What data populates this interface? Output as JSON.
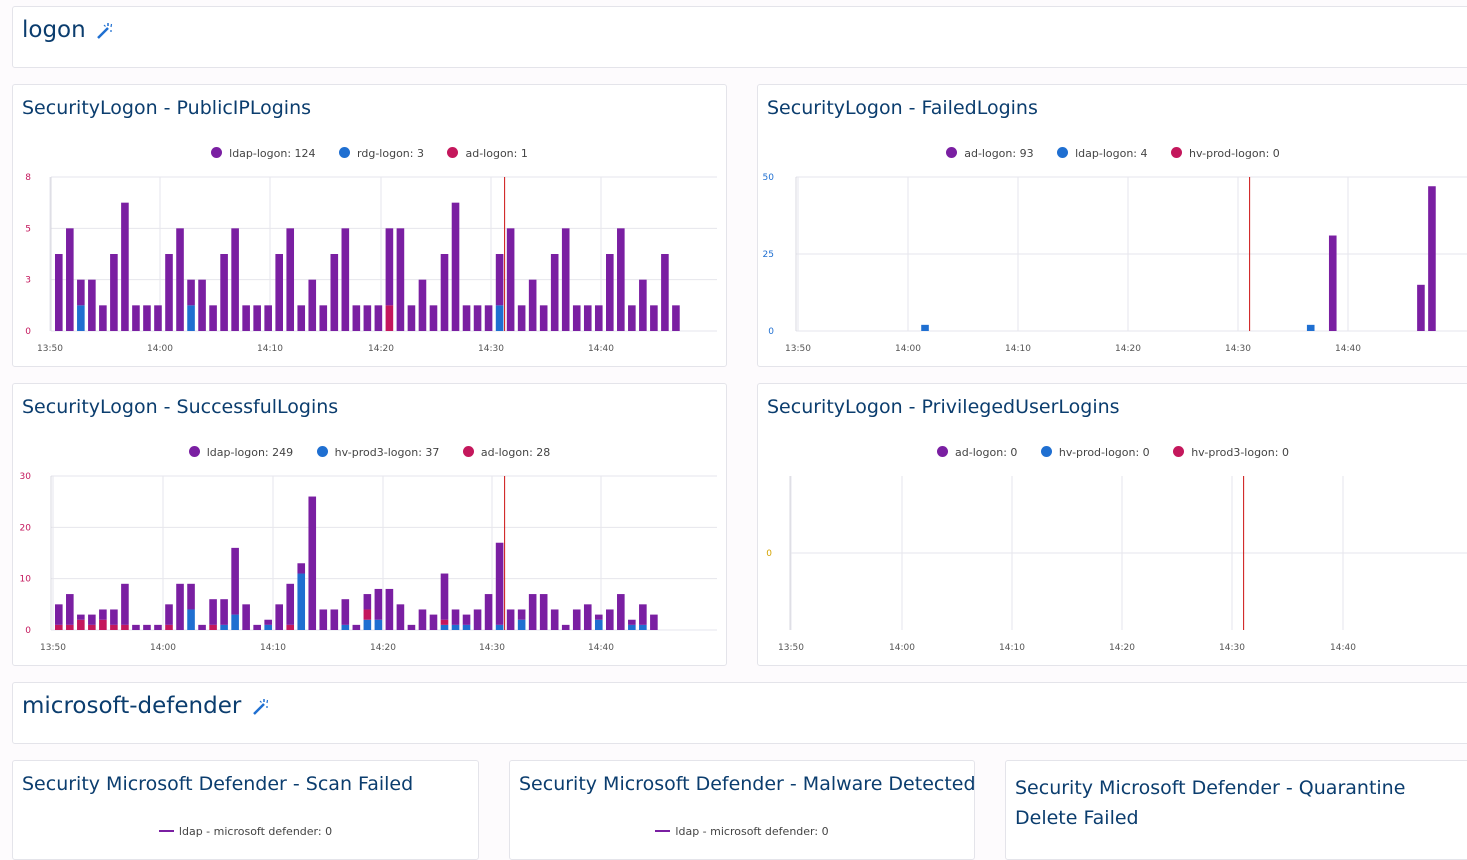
{
  "colors": {
    "purple": "#7a1fa2",
    "blue": "#1f6fd1",
    "red": "#c4175c",
    "marker": "#cc1111",
    "ytick_default": "#c4175c",
    "ytick_blue": "#1f6fd1",
    "ytick_zero": "#d4a300"
  },
  "sections": {
    "logon": {
      "title": "logon",
      "edit_icon": "magic-wand-icon"
    },
    "defender": {
      "title": "microsoft-defender",
      "edit_icon": "magic-wand-icon"
    }
  },
  "panels": {
    "public_ip": {
      "title": "SecurityLogon - PublicIPLogins",
      "legend": [
        {
          "label": "ldap-logon: 124",
          "color": "#7a1fa2"
        },
        {
          "label": "rdg-logon: 3",
          "color": "#1f6fd1"
        },
        {
          "label": "ad-logon: 1",
          "color": "#c4175c"
        }
      ]
    },
    "failed": {
      "title": "SecurityLogon - FailedLogins",
      "legend": [
        {
          "label": "ad-logon: 93",
          "color": "#7a1fa2"
        },
        {
          "label": "ldap-logon: 4",
          "color": "#1f6fd1"
        },
        {
          "label": "hv-prod-logon: 0",
          "color": "#c4175c"
        }
      ]
    },
    "successful": {
      "title": "SecurityLogon - SuccessfulLogins",
      "legend": [
        {
          "label": "ldap-logon: 249",
          "color": "#7a1fa2"
        },
        {
          "label": "hv-prod3-logon: 37",
          "color": "#1f6fd1"
        },
        {
          "label": "ad-logon: 28",
          "color": "#c4175c"
        }
      ]
    },
    "privileged": {
      "title": "SecurityLogon - PrivilegedUserLogins",
      "legend": [
        {
          "label": "ad-logon: 0",
          "color": "#7a1fa2"
        },
        {
          "label": "hv-prod-logon: 0",
          "color": "#1f6fd1"
        },
        {
          "label": "hv-prod3-logon: 0",
          "color": "#c4175c"
        }
      ]
    },
    "scan_failed": {
      "title": "Security Microsoft Defender - Scan Failed",
      "legend_line": {
        "label": "ldap - microsoft defender: 0",
        "color": "#7a1fa2"
      }
    },
    "malware": {
      "title": "Security Microsoft Defender - Malware Detected",
      "legend_line": {
        "label": "ldap - microsoft defender: 0",
        "color": "#7a1fa2"
      }
    },
    "quarantine": {
      "title": "Security Microsoft Defender - Quarantine Delete Failed"
    }
  },
  "chart_data": [
    {
      "id": "public_ip",
      "type": "bar",
      "stacked": true,
      "x_ticks": [
        "13:50",
        "14:00",
        "14:10",
        "14:20",
        "14:30",
        "14:40"
      ],
      "y_ticks": [
        "8",
        "5",
        "3",
        "0"
      ],
      "ylim": [
        0,
        6
      ],
      "grid": true,
      "bar_count": 57,
      "marker_index": 40.8,
      "series": [
        {
          "name": "ldap-logon",
          "color": "#7a1fa2",
          "values": [
            3,
            4,
            1,
            2,
            1,
            3,
            5,
            1,
            1,
            1,
            3,
            4,
            1,
            2,
            1,
            3,
            4,
            1,
            1,
            1,
            3,
            4,
            1,
            2,
            1,
            3,
            4,
            1,
            1,
            1,
            3,
            4,
            1,
            2,
            1,
            3,
            5,
            1,
            1,
            1,
            2,
            4,
            1,
            2,
            1,
            3,
            4,
            1,
            1,
            1,
            3,
            4,
            1,
            2,
            1,
            3,
            1
          ]
        },
        {
          "name": "rdg-logon",
          "color": "#1f6fd1",
          "values": [
            0,
            0,
            1,
            0,
            0,
            0,
            0,
            0,
            0,
            0,
            0,
            0,
            1,
            0,
            0,
            0,
            0,
            0,
            0,
            0,
            0,
            0,
            0,
            0,
            0,
            0,
            0,
            0,
            0,
            0,
            0,
            0,
            0,
            0,
            0,
            0,
            0,
            0,
            0,
            0,
            1,
            0,
            0,
            0,
            0,
            0,
            0,
            0,
            0,
            0,
            0,
            0,
            0,
            0,
            0,
            0,
            0
          ]
        },
        {
          "name": "ad-logon",
          "color": "#c4175c",
          "values": [
            0,
            0,
            0,
            0,
            0,
            0,
            0,
            0,
            0,
            0,
            0,
            0,
            0,
            0,
            0,
            0,
            0,
            0,
            0,
            0,
            0,
            0,
            0,
            0,
            0,
            0,
            0,
            0,
            0,
            0,
            1,
            0,
            0,
            0,
            0,
            0,
            0,
            0,
            0,
            0,
            0,
            0,
            0,
            0,
            0,
            0,
            0,
            0,
            0,
            0,
            0,
            0,
            0,
            0,
            0,
            0,
            0
          ]
        }
      ]
    },
    {
      "id": "failed",
      "type": "bar",
      "stacked": true,
      "x_ticks": [
        "13:50",
        "14:00",
        "14:10",
        "14:20",
        "14:30",
        "14:40"
      ],
      "y_ticks": [
        "50",
        "25",
        "0"
      ],
      "ylim": [
        0,
        50
      ],
      "grid": true,
      "bar_count": 60,
      "marker_index": 40.8,
      "series": [
        {
          "name": "ad-logon",
          "color": "#7a1fa2",
          "values": [
            0,
            0,
            0,
            0,
            0,
            0,
            0,
            0,
            0,
            0,
            0,
            0,
            0,
            0,
            0,
            0,
            0,
            0,
            0,
            0,
            0,
            0,
            0,
            0,
            0,
            0,
            0,
            0,
            0,
            0,
            0,
            0,
            0,
            0,
            0,
            0,
            0,
            0,
            0,
            0,
            0,
            0,
            0,
            0,
            0,
            0,
            0,
            0,
            31,
            0,
            0,
            0,
            0,
            0,
            0,
            0,
            15,
            47,
            0,
            0
          ]
        },
        {
          "name": "ldap-logon",
          "color": "#1f6fd1",
          "values": [
            0,
            0,
            0,
            0,
            0,
            0,
            0,
            0,
            0,
            0,
            0,
            2,
            0,
            0,
            0,
            0,
            0,
            0,
            0,
            0,
            0,
            0,
            0,
            0,
            0,
            0,
            0,
            0,
            0,
            0,
            0,
            0,
            0,
            0,
            0,
            0,
            0,
            0,
            0,
            0,
            0,
            0,
            0,
            0,
            0,
            0,
            2,
            0,
            0,
            0,
            0,
            0,
            0,
            0,
            0,
            0,
            0,
            0,
            0,
            0
          ]
        },
        {
          "name": "hv-prod-logon",
          "color": "#c4175c",
          "values": [
            0,
            0,
            0,
            0,
            0,
            0,
            0,
            0,
            0,
            0,
            0,
            0,
            0,
            0,
            0,
            0,
            0,
            0,
            0,
            0,
            0,
            0,
            0,
            0,
            0,
            0,
            0,
            0,
            0,
            0,
            0,
            0,
            0,
            0,
            0,
            0,
            0,
            0,
            0,
            0,
            0,
            0,
            0,
            0,
            0,
            0,
            0,
            0,
            0,
            0,
            0,
            0,
            0,
            0,
            0,
            0,
            0,
            0,
            0,
            0
          ]
        }
      ]
    },
    {
      "id": "successful",
      "type": "bar",
      "stacked": true,
      "x_ticks": [
        "13:50",
        "14:00",
        "14:10",
        "14:20",
        "14:30",
        "14:40"
      ],
      "y_ticks": [
        "30",
        "20",
        "10",
        "0"
      ],
      "ylim": [
        0,
        30
      ],
      "grid": true,
      "bar_count": 57,
      "marker_index": 40.8,
      "series": [
        {
          "name": "ldap-logon",
          "color": "#7a1fa2",
          "values": [
            4,
            6,
            1,
            2,
            2,
            3,
            8,
            1,
            1,
            1,
            4,
            9,
            5,
            1,
            5,
            5,
            13,
            5,
            1,
            1,
            5,
            8,
            2,
            26,
            4,
            4,
            5,
            1,
            3,
            6,
            8,
            5,
            1,
            4,
            3,
            9,
            3,
            2,
            4,
            7,
            16,
            4,
            2,
            7,
            7,
            4,
            1,
            4,
            5,
            1,
            4,
            7,
            1,
            4,
            3
          ]
        },
        {
          "name": "hv-prod3-logon",
          "color": "#1f6fd1",
          "values": [
            0,
            0,
            0,
            0,
            0,
            0,
            0,
            0,
            0,
            0,
            0,
            0,
            4,
            0,
            0,
            1,
            3,
            0,
            0,
            1,
            0,
            0,
            11,
            0,
            0,
            0,
            1,
            0,
            2,
            2,
            0,
            0,
            0,
            0,
            0,
            1,
            1,
            1,
            0,
            0,
            1,
            0,
            2,
            0,
            0,
            0,
            0,
            0,
            0,
            2,
            0,
            0,
            1,
            1,
            0
          ]
        },
        {
          "name": "ad-logon",
          "color": "#c4175c",
          "values": [
            1,
            1,
            2,
            1,
            2,
            1,
            1,
            0,
            0,
            0,
            1,
            0,
            0,
            0,
            1,
            0,
            0,
            0,
            0,
            0,
            0,
            1,
            0,
            0,
            0,
            0,
            0,
            0,
            2,
            0,
            0,
            0,
            0,
            0,
            0,
            1,
            0,
            0,
            0,
            0,
            0,
            0,
            0,
            0,
            0,
            0,
            0,
            0,
            0,
            0,
            0,
            0,
            0,
            0,
            0
          ]
        }
      ]
    },
    {
      "id": "privileged",
      "type": "bar",
      "stacked": true,
      "x_ticks": [
        "13:50",
        "14:00",
        "14:10",
        "14:20",
        "14:30",
        "14:40"
      ],
      "y_ticks": [
        "0"
      ],
      "ylim": [
        -1,
        1
      ],
      "grid": true,
      "bar_count": 57,
      "marker_index": 40.8,
      "series": [
        {
          "name": "ad-logon",
          "color": "#7a1fa2",
          "values": []
        },
        {
          "name": "hv-prod-logon",
          "color": "#1f6fd1",
          "values": []
        },
        {
          "name": "hv-prod3-logon",
          "color": "#c4175c",
          "values": []
        }
      ]
    }
  ]
}
